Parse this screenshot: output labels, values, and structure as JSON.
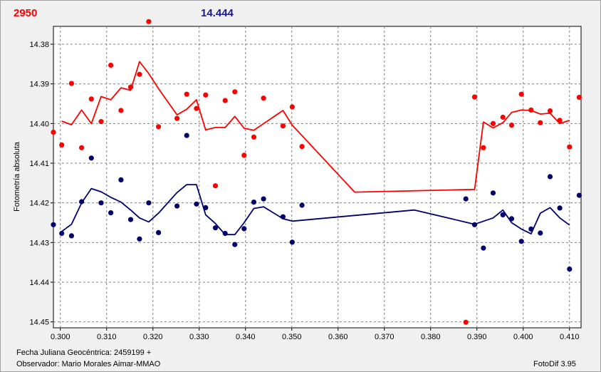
{
  "header": {
    "left_value": "2950",
    "right_value": "14.444"
  },
  "footer": {
    "jd_label": "Fecha Juliana Geocéntrica: 2459199 +",
    "observer_label": "Observador: Mario Morales Aimar-MMAO",
    "version": "FotoDif 3.95"
  },
  "colors": {
    "red_series": "#ff0000",
    "blue_series": "#00006e",
    "grid": "#808080"
  },
  "chart_data": {
    "type": "scatter",
    "ylabel": "Fotometría absoluta",
    "xlim": [
      0.2985,
      0.4125
    ],
    "ylim": [
      14.3755,
      14.4515
    ],
    "y_inverted": true,
    "grid": true,
    "x_ticks": [
      "0.300",
      "0.310",
      "0.320",
      "0.330",
      "0.340",
      "0.350",
      "0.360",
      "0.370",
      "0.380",
      "0.390",
      "0.400",
      "0.410"
    ],
    "y_ticks": [
      "14.38",
      "14.39",
      "14.40",
      "14.41",
      "14.42",
      "14.43",
      "14.44",
      "14.45"
    ],
    "series": [
      {
        "color": "#ff0000",
        "points": [
          [
            0.2985,
            14.4022
          ],
          [
            0.3003,
            14.4054
          ],
          [
            0.3024,
            14.3899
          ],
          [
            0.3046,
            14.4061
          ],
          [
            0.3067,
            14.3938
          ],
          [
            0.3088,
            14.3995
          ],
          [
            0.3109,
            14.3853
          ],
          [
            0.3131,
            14.3967
          ],
          [
            0.3152,
            14.3908
          ],
          [
            0.3171,
            14.3876
          ],
          [
            0.3191,
            14.3743
          ],
          [
            0.3212,
            14.4008
          ],
          [
            0.3252,
            14.3987
          ],
          [
            0.3273,
            14.3926
          ],
          [
            0.3294,
            14.3962
          ],
          [
            0.3314,
            14.3928
          ],
          [
            0.3335,
            14.4157
          ],
          [
            0.3356,
            14.3942
          ],
          [
            0.3377,
            14.392
          ],
          [
            0.3397,
            14.408
          ],
          [
            0.3418,
            14.4034
          ],
          [
            0.3439,
            14.3936
          ],
          [
            0.3481,
            14.4006
          ],
          [
            0.3501,
            14.3958
          ],
          [
            0.3522,
            14.4058
          ],
          [
            0.3876,
            14.4501
          ],
          [
            0.3895,
            14.3933
          ],
          [
            0.3914,
            14.4061
          ],
          [
            0.3935,
            14.4
          ],
          [
            0.3956,
            14.3984
          ],
          [
            0.3975,
            14.4004
          ],
          [
            0.3996,
            14.3926
          ],
          [
            0.4017,
            14.3966
          ],
          [
            0.4037,
            14.3998
          ],
          [
            0.4058,
            14.3968
          ],
          [
            0.4079,
            14.3992
          ],
          [
            0.41,
            14.4059
          ],
          [
            0.4121,
            14.3934
          ]
        ],
        "trend": [
          [
            0.3003,
            14.3994
          ],
          [
            0.3024,
            14.4003
          ],
          [
            0.3046,
            14.3966
          ],
          [
            0.3067,
            14.4
          ],
          [
            0.3088,
            14.3932
          ],
          [
            0.3109,
            14.394
          ],
          [
            0.3131,
            14.391
          ],
          [
            0.3152,
            14.3916
          ],
          [
            0.3171,
            14.3844
          ],
          [
            0.3191,
            14.3874
          ],
          [
            0.3212,
            14.3912
          ],
          [
            0.3252,
            14.3978
          ],
          [
            0.3273,
            14.3964
          ],
          [
            0.3294,
            14.394
          ],
          [
            0.3314,
            14.4016
          ],
          [
            0.3335,
            14.401
          ],
          [
            0.3356,
            14.401
          ],
          [
            0.3377,
            14.3982
          ],
          [
            0.3397,
            14.4012
          ],
          [
            0.3418,
            14.4017
          ],
          [
            0.3481,
            14.3967
          ],
          [
            0.3501,
            14.4004
          ],
          [
            0.3636,
            14.4173
          ],
          [
            0.3895,
            14.4166
          ],
          [
            0.3914,
            14.3996
          ],
          [
            0.3935,
            14.4011
          ],
          [
            0.3956,
            14.3998
          ],
          [
            0.3975,
            14.3972
          ],
          [
            0.3996,
            14.3966
          ],
          [
            0.4017,
            14.3967
          ],
          [
            0.4037,
            14.3976
          ],
          [
            0.4058,
            14.3974
          ],
          [
            0.4079,
            14.4
          ],
          [
            0.41,
            14.3992
          ]
        ]
      },
      {
        "color": "#00006e",
        "points": [
          [
            0.2985,
            14.4255
          ],
          [
            0.3003,
            14.4277
          ],
          [
            0.3024,
            14.4283
          ],
          [
            0.3046,
            14.4197
          ],
          [
            0.3067,
            14.4087
          ],
          [
            0.3088,
            14.42
          ],
          [
            0.3109,
            14.4225
          ],
          [
            0.3131,
            14.4142
          ],
          [
            0.3152,
            14.4242
          ],
          [
            0.3171,
            14.4291
          ],
          [
            0.3191,
            14.42
          ],
          [
            0.3212,
            14.4275
          ],
          [
            0.3252,
            14.4208
          ],
          [
            0.3273,
            14.403
          ],
          [
            0.3294,
            14.4203
          ],
          [
            0.3314,
            14.4212
          ],
          [
            0.3335,
            14.4263
          ],
          [
            0.3356,
            14.4277
          ],
          [
            0.3377,
            14.4305
          ],
          [
            0.3397,
            14.4265
          ],
          [
            0.3418,
            14.4198
          ],
          [
            0.3439,
            14.419
          ],
          [
            0.3481,
            14.4235
          ],
          [
            0.3501,
            14.4299
          ],
          [
            0.3522,
            14.4206
          ],
          [
            0.3876,
            14.419
          ],
          [
            0.3895,
            14.4255
          ],
          [
            0.3914,
            14.4314
          ],
          [
            0.3935,
            14.4175
          ],
          [
            0.3956,
            14.423
          ],
          [
            0.3975,
            14.424
          ],
          [
            0.3996,
            14.4297
          ],
          [
            0.4017,
            14.4266
          ],
          [
            0.4037,
            14.4276
          ],
          [
            0.4058,
            14.4134
          ],
          [
            0.4079,
            14.4213
          ],
          [
            0.41,
            14.4367
          ],
          [
            0.4121,
            14.4181
          ]
        ],
        "trend": [
          [
            0.3003,
            14.4272
          ],
          [
            0.3024,
            14.4254
          ],
          [
            0.3046,
            14.42
          ],
          [
            0.3067,
            14.4164
          ],
          [
            0.3088,
            14.4172
          ],
          [
            0.3109,
            14.4186
          ],
          [
            0.3131,
            14.4198
          ],
          [
            0.3152,
            14.4218
          ],
          [
            0.3171,
            14.4238
          ],
          [
            0.3191,
            14.4248
          ],
          [
            0.3212,
            14.4226
          ],
          [
            0.3252,
            14.4174
          ],
          [
            0.3273,
            14.4154
          ],
          [
            0.3294,
            14.4154
          ],
          [
            0.3314,
            14.423
          ],
          [
            0.3335,
            14.4252
          ],
          [
            0.3356,
            14.428
          ],
          [
            0.3377,
            14.428
          ],
          [
            0.3397,
            14.425
          ],
          [
            0.3418,
            14.4214
          ],
          [
            0.3439,
            14.421
          ],
          [
            0.3481,
            14.424
          ],
          [
            0.3501,
            14.4246
          ],
          [
            0.3765,
            14.4218
          ],
          [
            0.3895,
            14.4254
          ],
          [
            0.3935,
            14.4238
          ],
          [
            0.3956,
            14.4218
          ],
          [
            0.3975,
            14.425
          ],
          [
            0.3996,
            14.4266
          ],
          [
            0.4017,
            14.4278
          ],
          [
            0.4037,
            14.4226
          ],
          [
            0.4058,
            14.4212
          ],
          [
            0.4079,
            14.4238
          ],
          [
            0.41,
            14.4256
          ]
        ]
      }
    ]
  }
}
